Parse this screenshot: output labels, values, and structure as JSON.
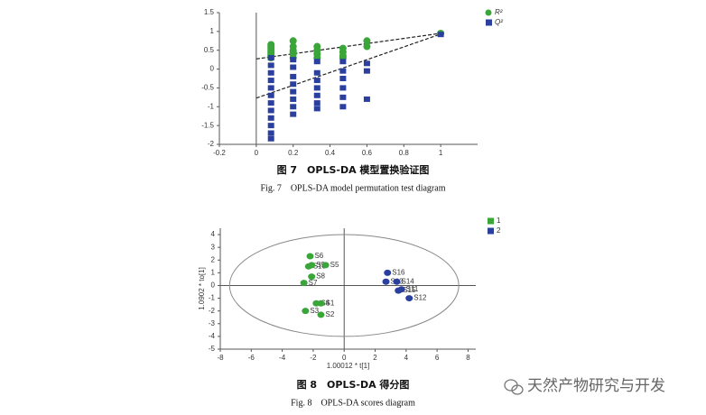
{
  "chart_data": [
    {
      "type": "scatter",
      "caption_cn": "图 7　OPLS-DA 模型置换验证图",
      "caption_en": "Fig. 7　OPLS-DA model permutation test diagram",
      "xlim": [
        -0.2,
        1.2
      ],
      "ylim": [
        -2,
        1.5
      ],
      "xticks": [
        -0.2,
        0,
        0.2,
        0.4,
        0.6,
        0.8,
        1
      ],
      "yticks": [
        -2,
        -1.5,
        -1,
        -0.5,
        0,
        0.5,
        1,
        1.5
      ],
      "legend": "top-right",
      "series": [
        {
          "name": "R²",
          "color": "#3aa63a",
          "marker": "circle",
          "x": [
            0.08,
            0.08,
            0.08,
            0.08,
            0.08,
            0.08,
            0.08,
            0.08,
            0.2,
            0.2,
            0.2,
            0.2,
            0.2,
            0.2,
            0.33,
            0.33,
            0.33,
            0.33,
            0.47,
            0.47,
            0.47,
            0.47,
            0.6,
            0.6,
            1
          ],
          "values": [
            0.65,
            0.6,
            0.55,
            0.5,
            0.45,
            0.4,
            0.35,
            0.3,
            0.75,
            0.6,
            0.5,
            0.45,
            0.4,
            0.3,
            0.6,
            0.5,
            0.4,
            0.3,
            0.55,
            0.45,
            0.35,
            0.3,
            0.75,
            0.6,
            0.95
          ]
        },
        {
          "name": "Q²",
          "color": "#2b3f9e",
          "marker": "square",
          "x": [
            0.08,
            0.08,
            0.08,
            0.08,
            0.08,
            0.08,
            0.08,
            0.08,
            0.08,
            0.08,
            0.08,
            0.08,
            0.2,
            0.2,
            0.2,
            0.2,
            0.2,
            0.2,
            0.2,
            0.2,
            0.33,
            0.33,
            0.33,
            0.33,
            0.33,
            0.33,
            0.33,
            0.47,
            0.47,
            0.47,
            0.47,
            0.47,
            0.47,
            0.6,
            0.6,
            0.6,
            1
          ],
          "values": [
            0.3,
            0.1,
            -0.1,
            -0.3,
            -0.5,
            -0.7,
            -0.9,
            -1.1,
            -1.3,
            -1.5,
            -1.7,
            -1.85,
            0.25,
            0.05,
            -0.2,
            -0.4,
            -0.6,
            -0.8,
            -1,
            -1.2,
            0.2,
            -0.1,
            -0.3,
            -0.5,
            -0.7,
            -0.9,
            -1.05,
            0.2,
            -0.05,
            -0.25,
            -0.5,
            -0.75,
            -1,
            0.15,
            -0.05,
            -0.8,
            0.92
          ]
        }
      ],
      "trend_lines": [
        {
          "x": [
            0,
            1
          ],
          "values": [
            0.27,
            0.95
          ]
        },
        {
          "x": [
            0,
            1
          ],
          "values": [
            -0.77,
            0.93
          ]
        }
      ]
    },
    {
      "type": "scatter",
      "caption_cn": "图 8　OPLS-DA 得分图",
      "caption_en": "Fig. 8　OPLS-DA scores diagram",
      "xlabel": "1.00012 * t[1]",
      "ylabel": "1.0902 * to[1]",
      "xlim": [
        -8,
        8.5
      ],
      "ylim": [
        -5,
        4.5
      ],
      "xticks": [
        -8,
        -6,
        -4,
        -2,
        0,
        2,
        4,
        6,
        8
      ],
      "yticks": [
        -5,
        -4,
        -3,
        -2,
        -1,
        0,
        1,
        2,
        3,
        4
      ],
      "legend": "top-right",
      "ellipse": {
        "rx": 7.4,
        "ry": 4
      },
      "series": [
        {
          "name": "1",
          "color": "#3aa63a",
          "marker": "ellipse",
          "labels": [
            "S6",
            "S10",
            "S9",
            "S5",
            "S8",
            "S7",
            "S4",
            "S1",
            "S3",
            "S2"
          ],
          "x": [
            -2.2,
            -2.3,
            -2.1,
            -1.2,
            -2.1,
            -2.6,
            -1.8,
            -1.5,
            -2.5,
            -1.5
          ],
          "values": [
            2.3,
            1.5,
            1.6,
            1.6,
            0.7,
            0.2,
            -1.4,
            -1.4,
            -2,
            -2.3
          ]
        },
        {
          "name": "2",
          "color": "#2b3f9e",
          "marker": "ellipse",
          "labels": [
            "S16",
            "S13",
            "S14",
            "S15",
            "S11",
            "S12"
          ],
          "x": [
            2.8,
            2.7,
            3.4,
            3.5,
            3.7,
            4.2
          ],
          "values": [
            1,
            0.3,
            0.3,
            -0.4,
            -0.3,
            -1
          ]
        }
      ]
    }
  ],
  "watermark": "天然产物研究与开发"
}
